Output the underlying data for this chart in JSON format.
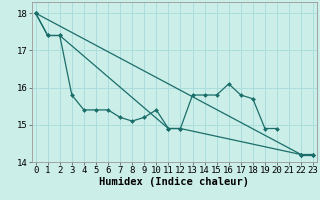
{
  "title": "",
  "xlabel": "Humidex (Indice chaleur)",
  "background_color": "#cceee8",
  "grid_color": "#aadddd",
  "line_color": "#1a6e6a",
  "x_values": [
    0,
    1,
    2,
    3,
    4,
    5,
    6,
    7,
    8,
    9,
    10,
    11,
    12,
    13,
    14,
    15,
    16,
    17,
    18,
    19,
    20,
    21,
    22,
    23
  ],
  "line1_y": [
    18.0,
    17.4,
    17.4,
    15.8,
    15.4,
    15.4,
    15.4,
    15.2,
    15.1,
    15.2,
    15.4,
    14.9,
    14.9,
    15.8,
    15.8,
    15.8,
    16.1,
    15.8,
    15.7,
    14.9,
    14.9,
    null,
    14.2,
    14.2
  ],
  "line2_x": [
    0,
    1,
    2,
    11,
    12,
    22,
    23
  ],
  "line2_y": [
    18.0,
    17.4,
    17.4,
    14.9,
    14.9,
    14.2,
    14.2
  ],
  "line3_x": [
    0,
    22,
    23
  ],
  "line3_y": [
    18.0,
    14.2,
    14.2
  ],
  "ylim": [
    14.0,
    18.3
  ],
  "xlim": [
    -0.3,
    23.3
  ],
  "yticks": [
    14,
    15,
    16,
    17,
    18
  ],
  "xticks": [
    0,
    1,
    2,
    3,
    4,
    5,
    6,
    7,
    8,
    9,
    10,
    11,
    12,
    13,
    14,
    15,
    16,
    17,
    18,
    19,
    20,
    21,
    22,
    23
  ],
  "xlabel_fontsize": 7.5,
  "tick_fontsize": 6.5,
  "line_width": 0.9,
  "marker": "D",
  "marker_size": 2.0
}
